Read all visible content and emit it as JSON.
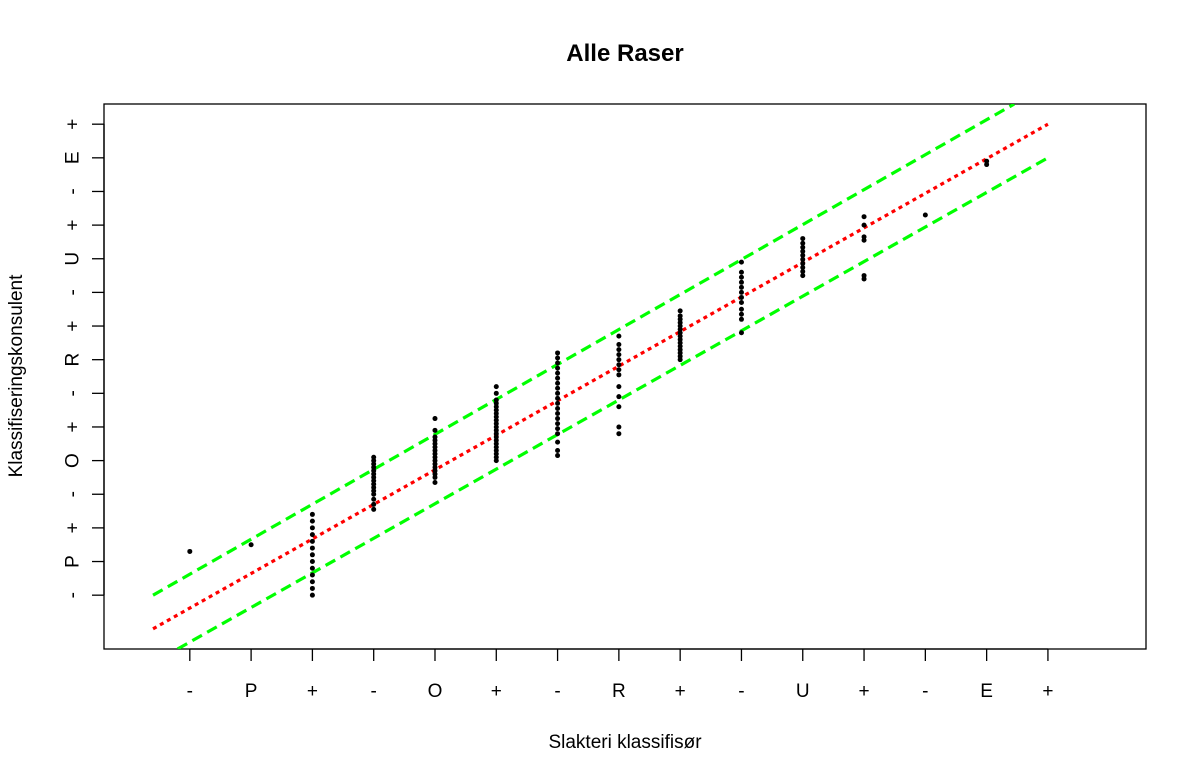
{
  "chart_data": {
    "type": "scatter",
    "title": "Alle Raser",
    "xlabel": "Slakteri klassifisør",
    "ylabel": "Klassifiseringskonsulent",
    "x_ticks": [
      {
        "value": 1,
        "label": "-"
      },
      {
        "value": 2,
        "label": "P"
      },
      {
        "value": 3,
        "label": "+"
      },
      {
        "value": 4,
        "label": "-"
      },
      {
        "value": 5,
        "label": "O"
      },
      {
        "value": 6,
        "label": "+"
      },
      {
        "value": 7,
        "label": "-"
      },
      {
        "value": 8,
        "label": "R"
      },
      {
        "value": 9,
        "label": "+"
      },
      {
        "value": 10,
        "label": "-"
      },
      {
        "value": 11,
        "label": "U"
      },
      {
        "value": 12,
        "label": "+"
      },
      {
        "value": 13,
        "label": "-"
      },
      {
        "value": 14,
        "label": "E"
      },
      {
        "value": 15,
        "label": "+"
      }
    ],
    "y_ticks": [
      {
        "value": 1,
        "label": "-"
      },
      {
        "value": 2,
        "label": "P"
      },
      {
        "value": 3,
        "label": "+"
      },
      {
        "value": 4,
        "label": "-"
      },
      {
        "value": 5,
        "label": "O"
      },
      {
        "value": 6,
        "label": "+"
      },
      {
        "value": 7,
        "label": "-"
      },
      {
        "value": 8,
        "label": "R"
      },
      {
        "value": 9,
        "label": "+"
      },
      {
        "value": 10,
        "label": "-"
      },
      {
        "value": 11,
        "label": "U"
      },
      {
        "value": 12,
        "label": "+"
      },
      {
        "value": 13,
        "label": "-"
      },
      {
        "value": 14,
        "label": "E"
      },
      {
        "value": 15,
        "label": "+"
      }
    ],
    "xlim": [
      -0.4,
      16.6
    ],
    "ylim": [
      -0.6,
      15.6
    ],
    "grid": false,
    "legend": "none",
    "lines": [
      {
        "kind": "identity",
        "color": "#ff0000",
        "dash": "dotted",
        "points": [
          [
            0.4,
            0.0
          ],
          [
            15.0,
            15.0
          ]
        ]
      },
      {
        "kind": "upper-band",
        "color": "#00ff00",
        "dash": "dashed",
        "points": [
          [
            0.4,
            1.0
          ],
          [
            14.45,
            15.6
          ]
        ]
      },
      {
        "kind": "lower-band",
        "color": "#00ff00",
        "dash": "dashed",
        "points": [
          [
            0.8,
            -0.6
          ],
          [
            15.0,
            14.0
          ]
        ]
      }
    ],
    "series": [
      {
        "points": [
          [
            1,
            2.3
          ],
          [
            2,
            2.5
          ],
          [
            3,
            1.0
          ],
          [
            3,
            1.2
          ],
          [
            3,
            1.4
          ],
          [
            3,
            1.6
          ],
          [
            3,
            1.8
          ],
          [
            3,
            2.0
          ],
          [
            3,
            2.2
          ],
          [
            3,
            2.4
          ],
          [
            3,
            2.6
          ],
          [
            3,
            2.8
          ],
          [
            3,
            3.0
          ],
          [
            3,
            3.2
          ],
          [
            3,
            3.4
          ],
          [
            4,
            3.55
          ],
          [
            4,
            3.7
          ],
          [
            4,
            3.85
          ],
          [
            4,
            4.0
          ],
          [
            4,
            4.1
          ],
          [
            4,
            4.2
          ],
          [
            4,
            4.3
          ],
          [
            4,
            4.4
          ],
          [
            4,
            4.5
          ],
          [
            4,
            4.6
          ],
          [
            4,
            4.7
          ],
          [
            4,
            4.8
          ],
          [
            4,
            4.9
          ],
          [
            4,
            5.0
          ],
          [
            4,
            5.1
          ],
          [
            5,
            4.35
          ],
          [
            5,
            4.5
          ],
          [
            5,
            4.6
          ],
          [
            5,
            4.7
          ],
          [
            5,
            4.8
          ],
          [
            5,
            4.9
          ],
          [
            5,
            5.0
          ],
          [
            5,
            5.1
          ],
          [
            5,
            5.2
          ],
          [
            5,
            5.3
          ],
          [
            5,
            5.4
          ],
          [
            5,
            5.5
          ],
          [
            5,
            5.6
          ],
          [
            5,
            5.7
          ],
          [
            5,
            5.9
          ],
          [
            5,
            6.25
          ],
          [
            6,
            5.0
          ],
          [
            6,
            5.1
          ],
          [
            6,
            5.2
          ],
          [
            6,
            5.3
          ],
          [
            6,
            5.4
          ],
          [
            6,
            5.5
          ],
          [
            6,
            5.6
          ],
          [
            6,
            5.7
          ],
          [
            6,
            5.8
          ],
          [
            6,
            5.9
          ],
          [
            6,
            6.0
          ],
          [
            6,
            6.1
          ],
          [
            6,
            6.2
          ],
          [
            6,
            6.3
          ],
          [
            6,
            6.4
          ],
          [
            6,
            6.5
          ],
          [
            6,
            6.6
          ],
          [
            6,
            6.7
          ],
          [
            6,
            6.8
          ],
          [
            6,
            7.0
          ],
          [
            6,
            7.2
          ],
          [
            7,
            5.15
          ],
          [
            7,
            5.3
          ],
          [
            7,
            5.55
          ],
          [
            7,
            5.8
          ],
          [
            7,
            5.95
          ],
          [
            7,
            6.1
          ],
          [
            7,
            6.25
          ],
          [
            7,
            6.4
          ],
          [
            7,
            6.55
          ],
          [
            7,
            6.7
          ],
          [
            7,
            6.85
          ],
          [
            7,
            7.0
          ],
          [
            7,
            7.15
          ],
          [
            7,
            7.3
          ],
          [
            7,
            7.45
          ],
          [
            7,
            7.6
          ],
          [
            7,
            7.75
          ],
          [
            7,
            7.9
          ],
          [
            7,
            8.05
          ],
          [
            7,
            8.2
          ],
          [
            8,
            5.8
          ],
          [
            8,
            6.0
          ],
          [
            8,
            6.6
          ],
          [
            8,
            6.9
          ],
          [
            8,
            7.2
          ],
          [
            8,
            7.55
          ],
          [
            8,
            7.7
          ],
          [
            8,
            7.85
          ],
          [
            8,
            8.0
          ],
          [
            8,
            8.15
          ],
          [
            8,
            8.3
          ],
          [
            8,
            8.45
          ],
          [
            8,
            8.7
          ],
          [
            9,
            8.0
          ],
          [
            9,
            8.1
          ],
          [
            9,
            8.2
          ],
          [
            9,
            8.3
          ],
          [
            9,
            8.4
          ],
          [
            9,
            8.5
          ],
          [
            9,
            8.6
          ],
          [
            9,
            8.7
          ],
          [
            9,
            8.8
          ],
          [
            9,
            8.9
          ],
          [
            9,
            9.0
          ],
          [
            9,
            9.1
          ],
          [
            9,
            9.2
          ],
          [
            9,
            9.3
          ],
          [
            9,
            9.45
          ],
          [
            10,
            8.8
          ],
          [
            10,
            9.2
          ],
          [
            10,
            9.35
          ],
          [
            10,
            9.5
          ],
          [
            10,
            9.7
          ],
          [
            10,
            9.85
          ],
          [
            10,
            10.0
          ],
          [
            10,
            10.15
          ],
          [
            10,
            10.3
          ],
          [
            10,
            10.45
          ],
          [
            10,
            10.6
          ],
          [
            10,
            10.9
          ],
          [
            11,
            10.5
          ],
          [
            11,
            10.62
          ],
          [
            11,
            10.74
          ],
          [
            11,
            10.86
          ],
          [
            11,
            10.98
          ],
          [
            11,
            11.1
          ],
          [
            11,
            11.22
          ],
          [
            11,
            11.34
          ],
          [
            11,
            11.46
          ],
          [
            11,
            11.6
          ],
          [
            12,
            10.4
          ],
          [
            12,
            10.5
          ],
          [
            12,
            11.55
          ],
          [
            12,
            11.65
          ],
          [
            12,
            12.0
          ],
          [
            12,
            12.25
          ],
          [
            13,
            12.3
          ],
          [
            14,
            13.8
          ],
          [
            14,
            13.9
          ]
        ]
      }
    ]
  }
}
